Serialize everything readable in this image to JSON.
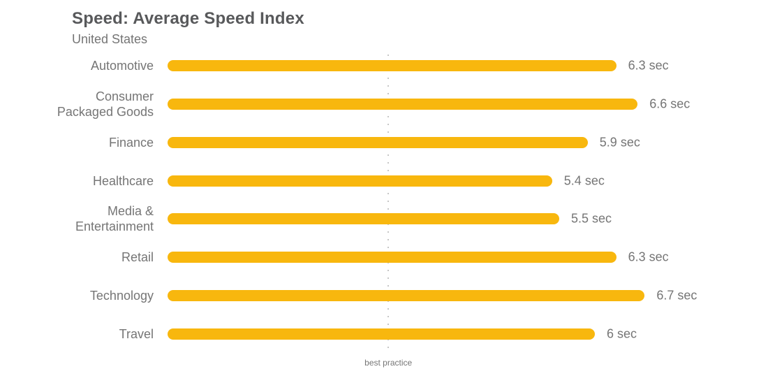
{
  "header": {
    "title": "Speed: Average Speed Index",
    "subtitle": "United States"
  },
  "chart_data": {
    "type": "bar",
    "orientation": "horizontal",
    "title": "Speed: Average Speed Index",
    "subtitle": "United States",
    "unit": "sec",
    "categories": [
      "Automotive",
      "Consumer Packaged Goods",
      "Finance",
      "Healthcare",
      "Media & Entertainment",
      "Retail",
      "Technology",
      "Travel"
    ],
    "values": [
      6.3,
      6.6,
      5.9,
      5.4,
      5.5,
      6.3,
      6.7,
      6
    ],
    "value_labels": [
      "6.3 sec",
      "6.6 sec",
      "5.9 sec",
      "5.4 sec",
      "5.5 sec",
      "6.3 sec",
      "6.7 sec",
      "6 sec"
    ],
    "xlim": [
      0,
      8.4
    ],
    "grid": false,
    "legend": false,
    "reference_line": {
      "label": "best practice",
      "value": 3.1,
      "style": "dotted"
    },
    "colors": {
      "bar": "#F8B70E",
      "label_text": "#757575",
      "title_text": "#58595B",
      "reference_line": "#C7C7C7"
    }
  }
}
